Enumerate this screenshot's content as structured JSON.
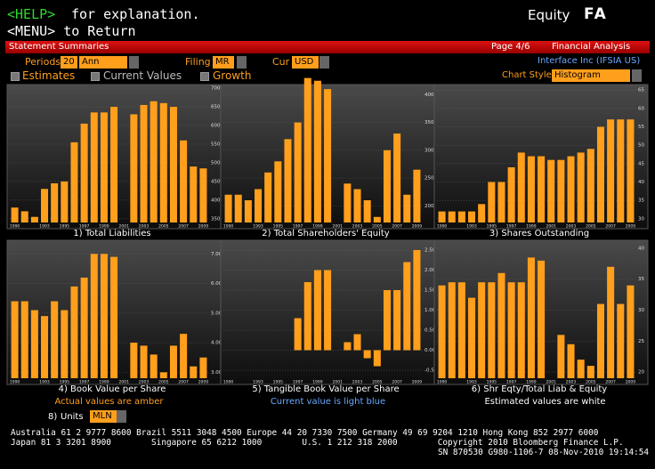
{
  "header": {
    "help": "<HELP>",
    "help_text": "for explanation.",
    "menu_line": "<MENU> to Return",
    "product": "Equity",
    "function": "FA"
  },
  "title_bar": {
    "left": "Statement Summaries",
    "page": "Page 4/6",
    "right": "Financial Analysis"
  },
  "controls": {
    "periods_label": "Periods",
    "periods": "20",
    "frequency": "Ann",
    "filing_label": "Filing",
    "filing": "MR",
    "currency_label": "Cur",
    "currency": "USD",
    "security": "Interface Inc (IFSIA US)",
    "estimates": "Estimates",
    "current_values": "Current Values",
    "growth": "Growth",
    "chart_style_label": "Chart Style",
    "chart_style": "Histogram"
  },
  "chart_data": [
    {
      "type": "bar",
      "title": "1) Total Liabilities",
      "color": "#ff9f1c",
      "grid": true,
      "categories": [
        "1990",
        null,
        null,
        "1993",
        null,
        "1995",
        null,
        "1997",
        null,
        "1999",
        null,
        "2001",
        null,
        "2003",
        null,
        "2005",
        null,
        "2007",
        null,
        "2009"
      ],
      "values": [
        380,
        370,
        355,
        430,
        445,
        450,
        555,
        605,
        635,
        635,
        650,
        null,
        630,
        655,
        665,
        660,
        650,
        560,
        490,
        485
      ],
      "ylim": [
        340,
        705
      ],
      "yticks": [
        350,
        400,
        450,
        500,
        550,
        600,
        650,
        700
      ]
    },
    {
      "type": "bar",
      "title": "2) Total Shareholders' Equity",
      "color": "#ff9f1c",
      "grid": true,
      "categories": [
        "1990",
        null,
        null,
        "1993",
        null,
        "1995",
        null,
        "1997",
        null,
        "1999",
        null,
        "2001",
        null,
        "2003",
        null,
        "2005",
        null,
        "2007",
        null,
        "2009"
      ],
      "values": [
        220,
        220,
        210,
        230,
        260,
        280,
        320,
        350,
        430,
        425,
        410,
        null,
        240,
        230,
        210,
        180,
        300,
        330,
        220,
        265
      ],
      "ylim": [
        170,
        415
      ],
      "yticks": [
        200,
        250,
        300,
        350,
        400
      ]
    },
    {
      "type": "bar",
      "title": "3) Shares Outstanding",
      "color": "#ff9f1c",
      "grid": true,
      "categories": [
        "1990",
        null,
        null,
        "1993",
        null,
        "1995",
        null,
        "1997",
        null,
        "1999",
        null,
        "2001",
        null,
        "2003",
        null,
        "2005",
        null,
        "2007",
        null,
        "2009"
      ],
      "values": [
        32,
        32,
        32,
        32,
        34,
        40,
        40,
        44,
        48,
        47,
        47,
        46,
        46,
        47,
        48,
        49,
        55,
        57,
        57,
        57
      ],
      "ylim": [
        29,
        66
      ],
      "yticks": [
        30,
        35,
        40,
        45,
        50,
        55,
        60,
        65
      ]
    },
    {
      "type": "bar",
      "title": "4) Book Value per Share",
      "color": "#ff9f1c",
      "grid": true,
      "categories": [
        "1990",
        null,
        null,
        "1993",
        null,
        "1995",
        null,
        "1997",
        null,
        "1999",
        null,
        "2001",
        null,
        "2003",
        null,
        "2005",
        null,
        "2007",
        null,
        "2009"
      ],
      "values": [
        5.4,
        5.4,
        5.1,
        4.9,
        5.4,
        5.1,
        5.9,
        6.2,
        7.0,
        7.0,
        6.9,
        null,
        4.0,
        3.9,
        3.6,
        3.0,
        3.9,
        4.3,
        3.2,
        3.5
      ],
      "ylim": [
        2.8,
        7.4
      ],
      "yticks": [
        {
          "value": 3,
          "label": "3.00"
        },
        {
          "value": 4,
          "label": "4.00"
        },
        {
          "value": 5,
          "label": "5.00"
        },
        {
          "value": 6,
          "label": "6.00"
        },
        {
          "value": 7,
          "label": "7.00"
        }
      ]
    },
    {
      "type": "bar",
      "title": "5) Tangible Book Value per Share",
      "color": "#ff9f1c",
      "grid": true,
      "categories": [
        "1990",
        null,
        null,
        "1993",
        null,
        "1995",
        null,
        "1997",
        null,
        "1999",
        null,
        "2001",
        null,
        "2003",
        null,
        "2005",
        null,
        "2007",
        null,
        "2009"
      ],
      "values": [
        null,
        null,
        null,
        null,
        null,
        null,
        null,
        0.8,
        1.7,
        2.0,
        2.0,
        null,
        0.2,
        0.4,
        -0.2,
        -0.4,
        1.5,
        1.5,
        2.2,
        2.5
      ],
      "ylim": [
        -0.7,
        2.7
      ],
      "yticks": [
        {
          "value": -0.5,
          "label": "-0.50"
        },
        {
          "value": 0,
          "label": "0.00"
        },
        {
          "value": 0.5,
          "label": "0.50"
        },
        {
          "value": 1,
          "label": "1.00"
        },
        {
          "value": 1.5,
          "label": "1.50"
        },
        {
          "value": 2,
          "label": "2.00"
        },
        {
          "value": 2.5,
          "label": "2.50"
        }
      ]
    },
    {
      "type": "bar",
      "title": "6) Shr Eqty/Total Liab & Equity",
      "color": "#ff9f1c",
      "grid": true,
      "categories": [
        "1990",
        null,
        null,
        "1993",
        null,
        "1995",
        null,
        "1997",
        null,
        "1999",
        null,
        "2001",
        null,
        "2003",
        null,
        "2005",
        null,
        "2007",
        null,
        "2009"
      ],
      "values": [
        34,
        34.5,
        34.5,
        32,
        34.5,
        34.5,
        36,
        34.5,
        34.5,
        38.5,
        38,
        null,
        26,
        24.5,
        22,
        21,
        31,
        37,
        31,
        34
      ],
      "ylim": [
        19,
        41
      ],
      "yticks": [
        20,
        25,
        30,
        35,
        40
      ]
    }
  ],
  "notes": {
    "actual": "Actual values are amber",
    "current": "Current value is light blue",
    "estimated": "Estimated values are white",
    "units_key": "8)",
    "units_label": "Units",
    "units": "MLN"
  },
  "footer": {
    "line1": "Australia 61 2 9777 8600 Brazil 5511 3048 4500 Europe 44 20 7330 7500 Germany 49 69 9204 1210 Hong Kong 852 2977 6000",
    "line2": "Japan 81 3 3201 8900        Singapore 65 6212 1000        U.S. 1 212 318 2000        Copyright 2010 Bloomberg Finance L.P.",
    "line3": "SN 870530 G980-1106-7 08-Nov-2010 19:14:54"
  }
}
